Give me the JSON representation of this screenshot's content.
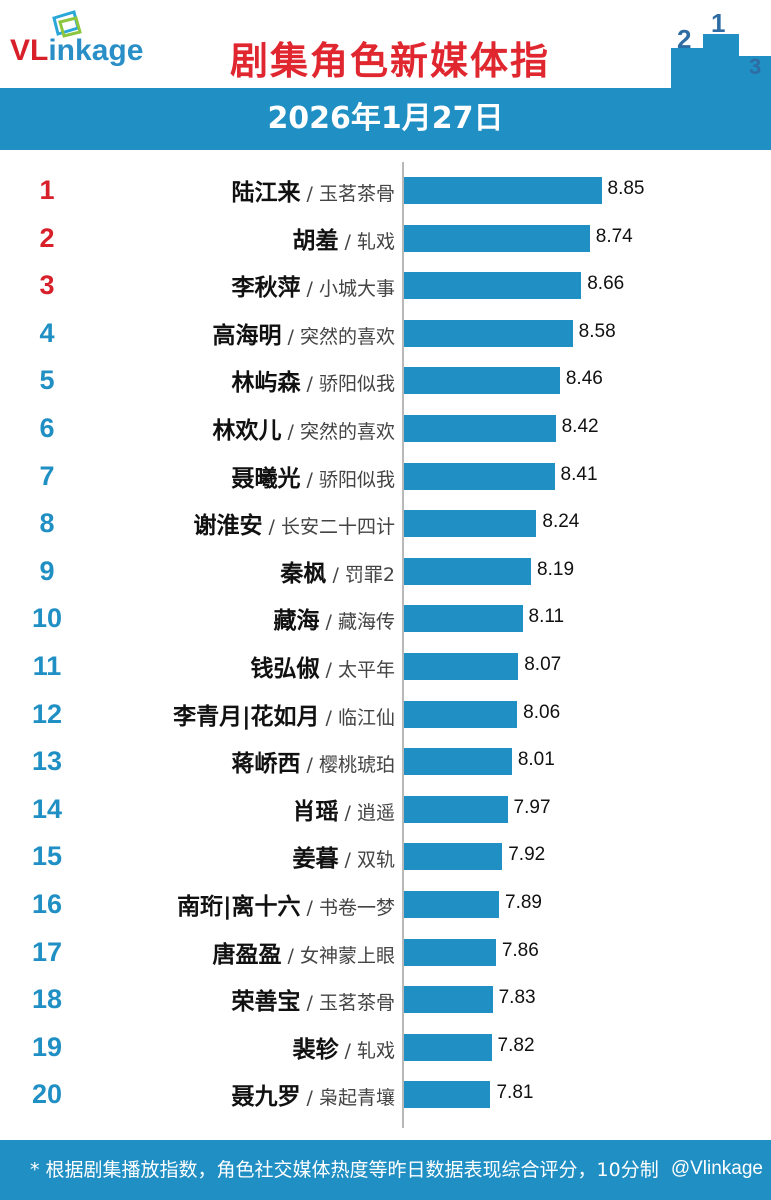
{
  "header": {
    "logo_vl": "VL",
    "logo_rest": "inkage",
    "title": "剧集角色新媒体指",
    "podium_labels": [
      "2",
      "1",
      "3"
    ]
  },
  "date": "2026年1月27日",
  "footer": {
    "note": "* 根据剧集播放指数，角色社交媒体热度等昨日数据表现综合评分，10分制",
    "watermark": "@Vlinkage"
  },
  "colors": {
    "accent": "#1f8fc4",
    "brand_red": "#d7202a",
    "title_red": "#e0262f"
  },
  "chart_data": {
    "type": "bar",
    "orientation": "horizontal",
    "title": "剧集角色新媒体指",
    "subtitle": "2026年1月27日",
    "xlim": [
      0,
      10
    ],
    "categories": [
      {
        "rank": "1",
        "name": "陆江来",
        "show": "玉茗茶骨"
      },
      {
        "rank": "2",
        "name": "胡羞",
        "show": "轧戏"
      },
      {
        "rank": "3",
        "name": "李秋萍",
        "show": "小城大事"
      },
      {
        "rank": "4",
        "name": "高海明",
        "show": "突然的喜欢"
      },
      {
        "rank": "5",
        "name": "林屿森",
        "show": "骄阳似我"
      },
      {
        "rank": "6",
        "name": "林欢儿",
        "show": "突然的喜欢"
      },
      {
        "rank": "7",
        "name": "聂曦光",
        "show": "骄阳似我"
      },
      {
        "rank": "8",
        "name": "谢淮安",
        "show": "长安二十四计"
      },
      {
        "rank": "9",
        "name": "秦枫",
        "show": "罚罪2"
      },
      {
        "rank": "10",
        "name": "藏海",
        "show": "藏海传"
      },
      {
        "rank": "11",
        "name": "钱弘俶",
        "show": "太平年"
      },
      {
        "rank": "12",
        "name": "李青月|花如月",
        "show": "临江仙"
      },
      {
        "rank": "13",
        "name": "蒋峤西",
        "show": "樱桃琥珀"
      },
      {
        "rank": "14",
        "name": "肖瑶",
        "show": "逍遥"
      },
      {
        "rank": "15",
        "name": "姜暮",
        "show": "双轨"
      },
      {
        "rank": "16",
        "name": "南珩|离十六",
        "show": "书卷一梦"
      },
      {
        "rank": "17",
        "name": "唐盈盈",
        "show": "女神蒙上眼"
      },
      {
        "rank": "18",
        "name": "荣善宝",
        "show": "玉茗茶骨"
      },
      {
        "rank": "19",
        "name": "裴轸",
        "show": "轧戏"
      },
      {
        "rank": "20",
        "name": "聂九罗",
        "show": "枭起青壤"
      }
    ],
    "values": [
      8.85,
      8.74,
      8.66,
      8.58,
      8.46,
      8.42,
      8.41,
      8.24,
      8.19,
      8.11,
      8.07,
      8.06,
      8.01,
      7.97,
      7.92,
      7.89,
      7.86,
      7.83,
      7.82,
      7.81
    ],
    "value_labels": [
      "8.85",
      "8.74",
      "8.66",
      "8.58",
      "8.46",
      "8.42",
      "8.41",
      "8.24",
      "8.19",
      "8.11",
      "8.07",
      "8.06",
      "8.01",
      "7.97",
      "7.92",
      "7.89",
      "7.86",
      "7.83",
      "7.82",
      "7.81"
    ]
  }
}
